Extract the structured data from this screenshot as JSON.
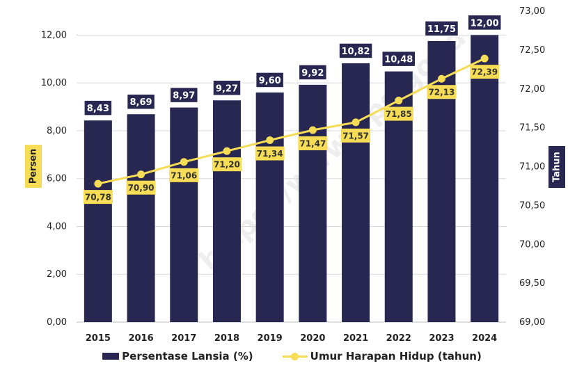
{
  "chart_data": {
    "type": "bar",
    "categories": [
      "2015",
      "2016",
      "2017",
      "2018",
      "2019",
      "2020",
      "2021",
      "2022",
      "2023",
      "2024"
    ],
    "series": [
      {
        "name": "Persentase Lansia (%)",
        "kind": "bar",
        "axis": "left",
        "values": [
          8.43,
          8.69,
          8.97,
          9.27,
          9.6,
          9.92,
          10.82,
          10.48,
          11.75,
          12.0
        ],
        "labels": [
          "8,43",
          "8,69",
          "8,97",
          "9,27",
          "9,60",
          "9,92",
          "10,82",
          "10,48",
          "11,75",
          "12,00"
        ]
      },
      {
        "name": "Umur Harapan Hidup (tahun)",
        "kind": "line",
        "axis": "right",
        "values": [
          70.78,
          70.9,
          71.06,
          71.2,
          71.34,
          71.47,
          71.57,
          71.85,
          72.13,
          72.39
        ],
        "labels": [
          "70,78",
          "70,90",
          "71,06",
          "71,20",
          "71,34",
          "71,47",
          "71,57",
          "71,85",
          "72,13",
          "72,39"
        ]
      }
    ],
    "ylabel": "Persen",
    "y2label": "Tahun",
    "ylim": [
      0,
      13
    ],
    "y2lim": [
      69,
      73
    ],
    "yticks": [
      "0,00",
      "2,00",
      "4,00",
      "6,00",
      "8,00",
      "10,00",
      "12,00"
    ],
    "y2ticks": [
      "69,00",
      "69,50",
      "70,00",
      "70,50",
      "71,00",
      "71,50",
      "72,00",
      "72,50",
      "73,00"
    ],
    "grid": true,
    "legend_position": "bottom",
    "watermark": "https://www.bps.go.id",
    "colors": {
      "bar": "#272752",
      "line": "#f6dd55",
      "label_bg": "#f6dd55",
      "grid": "#d9d9d9"
    }
  },
  "legend": {
    "bar_label": "Persentase Lansia (%)",
    "line_label": "Umur Harapan Hidup (tahun)"
  }
}
